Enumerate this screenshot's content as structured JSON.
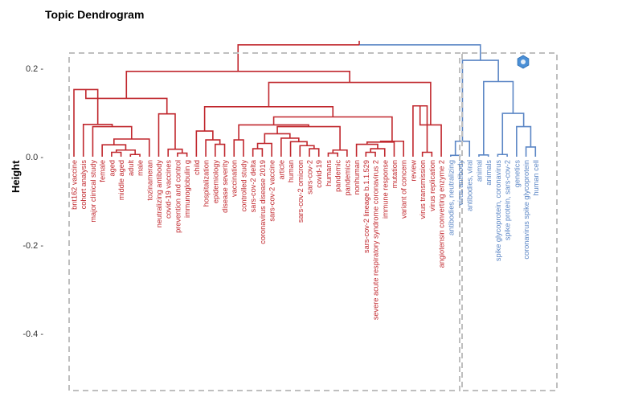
{
  "chart_data": {
    "type": "dendrogram",
    "title": "Topic Dendrogram",
    "ylabel": "Height",
    "xlabel": "",
    "ylim": [
      -0.53,
      0.255
    ],
    "yticks": [
      0.2,
      0.0,
      -0.2,
      -0.4
    ],
    "ytick_labels": [
      "0.2 -",
      "0.0 -",
      "-0.2 -",
      "-0.4 -"
    ],
    "colors": {
      "red": "#c0272d",
      "blue": "#5b86c5",
      "box": "#bfbfbf",
      "icon": "#4a8fd6"
    },
    "leaves": [
      {
        "label": "bnt162 vaccine",
        "cluster": "red"
      },
      {
        "label": "cohort analysis",
        "cluster": "red"
      },
      {
        "label": "major clinical study",
        "cluster": "red"
      },
      {
        "label": "female",
        "cluster": "red"
      },
      {
        "label": "aged",
        "cluster": "red"
      },
      {
        "label": "middle aged",
        "cluster": "red"
      },
      {
        "label": "adult",
        "cluster": "red"
      },
      {
        "label": "male",
        "cluster": "red"
      },
      {
        "label": "tozinameran",
        "cluster": "red"
      },
      {
        "label": "neutralizing antibody",
        "cluster": "red"
      },
      {
        "label": "covid-19 vaccines",
        "cluster": "red"
      },
      {
        "label": "prevention and control",
        "cluster": "red"
      },
      {
        "label": "immunoglobulin g",
        "cluster": "red"
      },
      {
        "label": "child",
        "cluster": "red"
      },
      {
        "label": "hospitalization",
        "cluster": "red"
      },
      {
        "label": "epidemiology",
        "cluster": "red"
      },
      {
        "label": "disease severity",
        "cluster": "red"
      },
      {
        "label": "vaccination",
        "cluster": "red"
      },
      {
        "label": "controlled study",
        "cluster": "red"
      },
      {
        "label": "sars-cov-2 delta",
        "cluster": "red"
      },
      {
        "label": "coronavirus disease 2019",
        "cluster": "red"
      },
      {
        "label": "sars-cov-2 vaccine",
        "cluster": "red"
      },
      {
        "label": "article",
        "cluster": "red"
      },
      {
        "label": "human",
        "cluster": "red"
      },
      {
        "label": "sars-cov-2 omicron",
        "cluster": "red"
      },
      {
        "label": "sars-cov-2",
        "cluster": "red"
      },
      {
        "label": "covid-19",
        "cluster": "red"
      },
      {
        "label": "humans",
        "cluster": "red"
      },
      {
        "label": "pandemic",
        "cluster": "red"
      },
      {
        "label": "pandemics",
        "cluster": "red"
      },
      {
        "label": "nonhuman",
        "cluster": "red"
      },
      {
        "label": "sars-cov-2 lineage b.1.1.529",
        "cluster": "red"
      },
      {
        "label": "severe acute respiratory syndrome coronavirus 2",
        "cluster": "red"
      },
      {
        "label": "immune response",
        "cluster": "red"
      },
      {
        "label": "mutation",
        "cluster": "red"
      },
      {
        "label": "variant of concern",
        "cluster": "red"
      },
      {
        "label": "review",
        "cluster": "red"
      },
      {
        "label": "virus transmission",
        "cluster": "red"
      },
      {
        "label": "virus replication",
        "cluster": "red"
      },
      {
        "label": "angiotensin converting enzyme 2",
        "cluster": "red"
      },
      {
        "label": "antibodies, neutralizing",
        "cluster": "blue"
      },
      {
        "label": "virus antibody",
        "cluster": "blue"
      },
      {
        "label": "antibodies, viral",
        "cluster": "blue"
      },
      {
        "label": "animal",
        "cluster": "blue"
      },
      {
        "label": "animals",
        "cluster": "blue"
      },
      {
        "label": "spike glycoprotein, coronavirus",
        "cluster": "blue"
      },
      {
        "label": "spike protein, sars-cov-2",
        "cluster": "blue"
      },
      {
        "label": "genetics",
        "cluster": "blue"
      },
      {
        "label": "coronavirus spike glycoprotein",
        "cluster": "blue"
      },
      {
        "label": "human cell",
        "cluster": "blue"
      }
    ],
    "merges": [
      {
        "a": "L4",
        "b": "L5",
        "h": 0.01
      },
      {
        "a": "L6",
        "b": "L7",
        "h": 0.005
      },
      {
        "a": "M0",
        "b": "M1",
        "h": 0.015
      },
      {
        "a": "L3",
        "b": "M2",
        "h": 0.027
      },
      {
        "a": "M3",
        "b": "L8",
        "h": 0.04
      },
      {
        "a": "L2",
        "b": "M4",
        "h": 0.068
      },
      {
        "a": "L1",
        "b": "M5",
        "h": 0.073
      },
      {
        "a": "L0",
        "b": "M6",
        "h": 0.152
      },
      {
        "a": "L11",
        "b": "L12",
        "h": 0.008
      },
      {
        "a": "L10",
        "b": "M8",
        "h": 0.017
      },
      {
        "a": "L9",
        "b": "M9",
        "h": 0.097
      },
      {
        "a": "M7",
        "b": "M10",
        "h": 0.132
      },
      {
        "a": "L15",
        "b": "L16",
        "h": 0.028
      },
      {
        "a": "L14",
        "b": "M12",
        "h": 0.038
      },
      {
        "a": "L13",
        "b": "M13",
        "h": 0.058
      },
      {
        "a": "L17",
        "b": "L18",
        "h": 0.038
      },
      {
        "a": "L19",
        "b": "L20",
        "h": 0.018
      },
      {
        "a": "M16",
        "b": "L21",
        "h": 0.03
      },
      {
        "a": "L25",
        "b": "L26",
        "h": 0.018
      },
      {
        "a": "L24",
        "b": "M18",
        "h": 0.025
      },
      {
        "a": "L23",
        "b": "M19",
        "h": 0.034
      },
      {
        "a": "L22",
        "b": "M20",
        "h": 0.042
      },
      {
        "a": "M17",
        "b": "M21",
        "h": 0.052
      },
      {
        "a": "L27",
        "b": "L28",
        "h": 0.008
      },
      {
        "a": "M23",
        "b": "L29",
        "h": 0.015
      },
      {
        "a": "M22",
        "b": "M24",
        "h": 0.068
      },
      {
        "a": "M15",
        "b": "M25",
        "h": 0.072
      },
      {
        "a": "L31",
        "b": "L32",
        "h": 0.01
      },
      {
        "a": "M27",
        "b": "L33",
        "h": 0.018
      },
      {
        "a": "L30",
        "b": "M28",
        "h": 0.028
      },
      {
        "a": "M29",
        "b": "L34",
        "h": 0.033
      },
      {
        "a": "M30",
        "b": "L35",
        "h": 0.035
      },
      {
        "a": "M26",
        "b": "M31",
        "h": 0.09
      },
      {
        "a": "M14",
        "b": "M32",
        "h": 0.113
      },
      {
        "a": "L37",
        "b": "L38",
        "h": 0.01
      },
      {
        "a": "L36",
        "b": "M34",
        "h": 0.115
      },
      {
        "a": "L39",
        "b": "M35",
        "h": 0.072
      },
      {
        "a": "M33",
        "b": "M36",
        "h": 0.168
      },
      {
        "a": "M11",
        "b": "M37",
        "h": 0.193
      },
      {
        "a": "L40",
        "b": "L41",
        "h": 0.003
      },
      {
        "a": "M39",
        "b": "L42",
        "h": 0.035
      },
      {
        "a": "L43",
        "b": "L44",
        "h": 0.004
      },
      {
        "a": "L45",
        "b": "L46",
        "h": 0.005
      },
      {
        "a": "L48",
        "b": "L49",
        "h": 0.022
      },
      {
        "a": "L47",
        "b": "M43",
        "h": 0.068
      },
      {
        "a": "M42",
        "b": "M44",
        "h": 0.098
      },
      {
        "a": "M41",
        "b": "M45",
        "h": 0.17
      },
      {
        "a": "M40",
        "b": "M46",
        "h": 0.218
      },
      {
        "a": "M38",
        "b": "M47",
        "h": 0.253
      }
    ]
  }
}
